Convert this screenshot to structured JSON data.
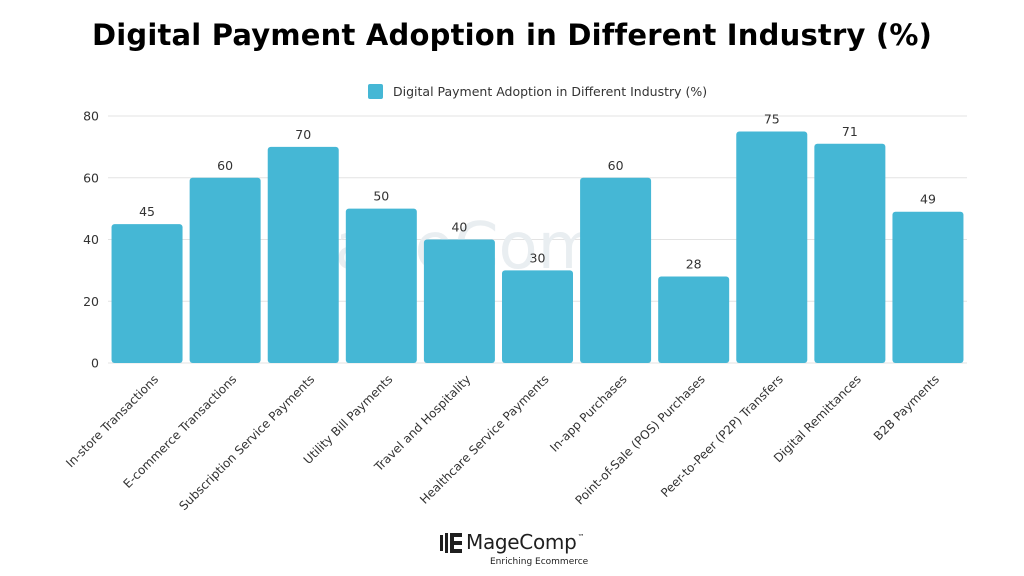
{
  "chart_data": {
    "type": "bar",
    "title": "Digital Payment Adoption in Different Industry (%)",
    "categories": [
      "In-store Transactions",
      "E-commerce Transactions",
      "Subscription Service Payments",
      "Utility Bill Payments",
      "Travel and Hospitality",
      "Healthcare Service Payments",
      "In-app Purchases",
      "Point-of-Sale (POS) Purchases",
      "Peer-to-Peer (P2P) Transfers",
      "Digital Remittances",
      "B2B Payments"
    ],
    "series": [
      {
        "name": "Digital Payment Adoption in Different Industry (%)",
        "values": [
          45,
          60,
          70,
          50,
          40,
          30,
          60,
          28,
          75,
          71,
          49
        ],
        "color": "#45b7d5"
      }
    ],
    "xlabel": "",
    "ylabel": "",
    "ylim": [
      0,
      80
    ],
    "yticks": [
      0,
      20,
      40,
      60,
      80
    ],
    "grid": true,
    "legend_position": "top-center",
    "data_labels": true
  },
  "branding": {
    "logo_name": "MageComp",
    "logo_tm": "™",
    "tagline": "Enriching Ecommerce",
    "watermark": "MageComp"
  }
}
